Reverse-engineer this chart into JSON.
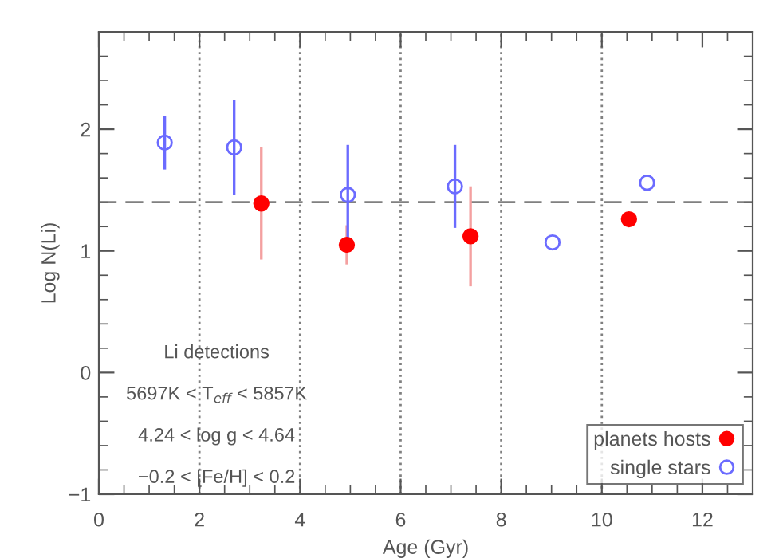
{
  "chart_data": {
    "type": "scatter",
    "xlabel": "Age (Gyr)",
    "ylabel": "Log N(Li)",
    "xlim": [
      0,
      13
    ],
    "xticks": [
      0,
      2,
      4,
      6,
      8,
      10,
      12
    ],
    "ylim": [
      -1,
      2.8
    ],
    "yticks": [
      -1,
      0,
      1,
      2
    ],
    "marker": "circle",
    "legend": "bottom right",
    "grid": false,
    "series": [
      {
        "name": "planets hosts",
        "color": "#ff0000",
        "x": [
          3.23,
          4.93,
          7.39,
          10.54
        ],
        "values": [
          1.39,
          1.05,
          1.12,
          1.26
        ],
        "errors": [
          0.45,
          0.15,
          0.4,
          null
        ]
      },
      {
        "name": "single stars",
        "color": "#6b6bff",
        "x": [
          1.31,
          2.69,
          4.95,
          7.08,
          9.02,
          10.9
        ],
        "values": [
          1.89,
          1.85,
          1.46,
          1.53,
          1.07,
          1.56
        ],
        "errors": [
          0.21,
          0.38,
          0.4,
          0.33,
          null,
          null
        ]
      }
    ],
    "ref_lines": [
      {
        "axis": "y",
        "value": 1.4,
        "line_style": "dashed",
        "color": "#808080"
      },
      {
        "axis": "x",
        "value": 2,
        "line_style": "dotted",
        "color": "#808080"
      },
      {
        "axis": "x",
        "value": 4,
        "line_style": "dotted",
        "color": "#808080"
      },
      {
        "axis": "x",
        "value": 6,
        "line_style": "dotted",
        "color": "#808080"
      },
      {
        "axis": "x",
        "value": 8,
        "line_style": "dotted",
        "color": "#808080"
      },
      {
        "axis": "x",
        "value": 10,
        "line_style": "dotted",
        "color": "#808080"
      }
    ],
    "annotations": [
      "Li detections",
      "5697K < T$_{eff}$ < 5857K",
      "4.24 < log g < 4.64",
      "−0.2 < [Fe/H] < 0.2"
    ]
  }
}
